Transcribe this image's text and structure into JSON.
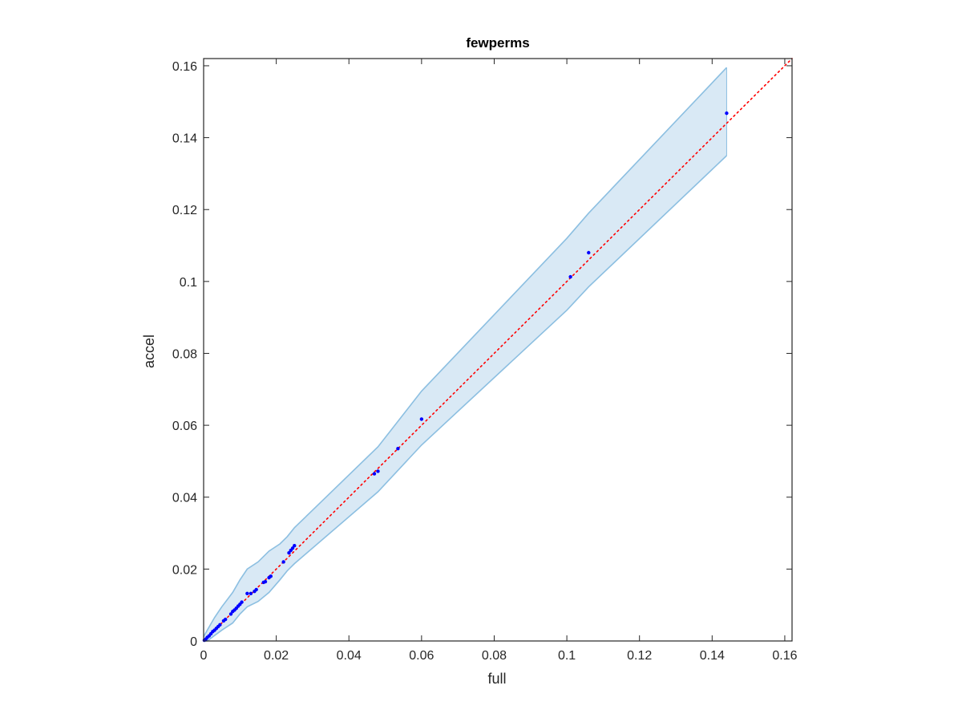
{
  "chart_data": {
    "type": "scatter",
    "title": "fewperms",
    "xlabel": "full",
    "ylabel": "accel",
    "xlim": [
      0,
      0.162
    ],
    "ylim": [
      0,
      0.162
    ],
    "xticks": [
      0,
      0.02,
      0.04,
      0.06,
      0.08,
      0.1,
      0.12,
      0.14,
      0.16
    ],
    "xtick_labels": [
      "0",
      "0.02",
      "0.04",
      "0.06",
      "0.08",
      "0.1",
      "0.12",
      "0.14",
      "0.16"
    ],
    "yticks": [
      0,
      0.02,
      0.04,
      0.06,
      0.08,
      0.1,
      0.12,
      0.14,
      0.16
    ],
    "ytick_labels": [
      "0",
      "0.02",
      "0.04",
      "0.06",
      "0.08",
      "0.1",
      "0.12",
      "0.14",
      "0.16"
    ],
    "grid": false,
    "colors": {
      "points": "#0000ff",
      "reference_line": "#ff0000",
      "band_fill": "#d9e9f5",
      "band_edge": "#8cbfe1",
      "axes": "#262626"
    },
    "reference_line": {
      "style": "dotted",
      "x": [
        0,
        0.162
      ],
      "y": [
        0,
        0.162
      ]
    },
    "band": {
      "x": [
        0,
        0.001,
        0.003,
        0.005,
        0.008,
        0.01,
        0.012,
        0.015,
        0.018,
        0.021,
        0.023,
        0.025,
        0.048,
        0.06,
        0.1,
        0.106,
        0.144
      ],
      "upper": [
        0.0012,
        0.003,
        0.0065,
        0.0095,
        0.0135,
        0.017,
        0.02,
        0.022,
        0.025,
        0.027,
        0.029,
        0.0315,
        0.054,
        0.0695,
        0.112,
        0.119,
        0.1595
      ],
      "lower": [
        0,
        0,
        0.0015,
        0.003,
        0.005,
        0.0075,
        0.0095,
        0.011,
        0.0135,
        0.017,
        0.0195,
        0.0215,
        0.0415,
        0.0545,
        0.092,
        0.0985,
        0.135
      ]
    },
    "series": [
      {
        "x": [
          0.0002,
          0.0006,
          0.001,
          0.0015,
          0.002,
          0.0025,
          0.003,
          0.0035,
          0.004,
          0.0045,
          0.0055,
          0.006,
          0.0075,
          0.008,
          0.0085,
          0.009,
          0.0095,
          0.01,
          0.0105,
          0.012,
          0.013,
          0.014,
          0.0145,
          0.0165,
          0.017,
          0.018,
          0.0185,
          0.022,
          0.0235,
          0.024,
          0.0245,
          0.025,
          0.047,
          0.048,
          0.0535,
          0.06,
          0.101,
          0.106,
          0.144
        ],
        "y": [
          0.0002,
          0.0005,
          0.001,
          0.0014,
          0.002,
          0.0026,
          0.003,
          0.0035,
          0.004,
          0.0045,
          0.0056,
          0.006,
          0.0075,
          0.0082,
          0.0086,
          0.0091,
          0.0097,
          0.0102,
          0.0108,
          0.0132,
          0.0132,
          0.0138,
          0.0143,
          0.0163,
          0.0165,
          0.0176,
          0.018,
          0.022,
          0.0245,
          0.0252,
          0.0258,
          0.0265,
          0.0465,
          0.0472,
          0.0535,
          0.0617,
          0.1013,
          0.108,
          0.1468
        ]
      }
    ]
  }
}
